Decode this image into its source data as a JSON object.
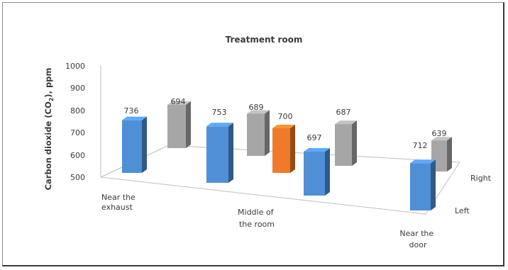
{
  "chart_data": {
    "type": "bar",
    "title": "Treatment room",
    "ylabel_parts": [
      "Carbon dioxide (CO",
      "2",
      "), ppm"
    ],
    "ylim": [
      500,
      1000
    ],
    "yticks": [
      500,
      600,
      700,
      800,
      900,
      1000
    ],
    "depth_labels": [
      "Left",
      "Right"
    ],
    "category_labels": [
      [
        "Near the",
        "exhaust"
      ],
      [
        "Middle of",
        "the room"
      ],
      [
        "Near the",
        "door"
      ]
    ],
    "series": [
      {
        "row": "Right",
        "location": "Near the exhaust",
        "value": 694,
        "color": "#a6a6a6"
      },
      {
        "row": "Right",
        "location": "Middle of the room",
        "value": 689,
        "color": "#a6a6a6"
      },
      {
        "row": "Right",
        "location": "Middle of the room",
        "value": 687,
        "color": "#a6a6a6"
      },
      {
        "row": "Right",
        "location": "Near the door",
        "value": 639,
        "color": "#a6a6a6"
      },
      {
        "row": "Left",
        "location": "Near the exhaust",
        "value": 736,
        "color": "#4f8fd6"
      },
      {
        "row": "Left",
        "location": "Middle of the room",
        "value": 753,
        "color": "#4f8fd6"
      },
      {
        "row": "Left",
        "location": "Middle of the room",
        "value": 700,
        "color": "#ef7b2a"
      },
      {
        "row": "Left",
        "location": "Middle of the room",
        "value": 697,
        "color": "#4f8fd6"
      },
      {
        "row": "Left",
        "location": "Near the door",
        "value": 712,
        "color": "#4f8fd6"
      }
    ]
  }
}
